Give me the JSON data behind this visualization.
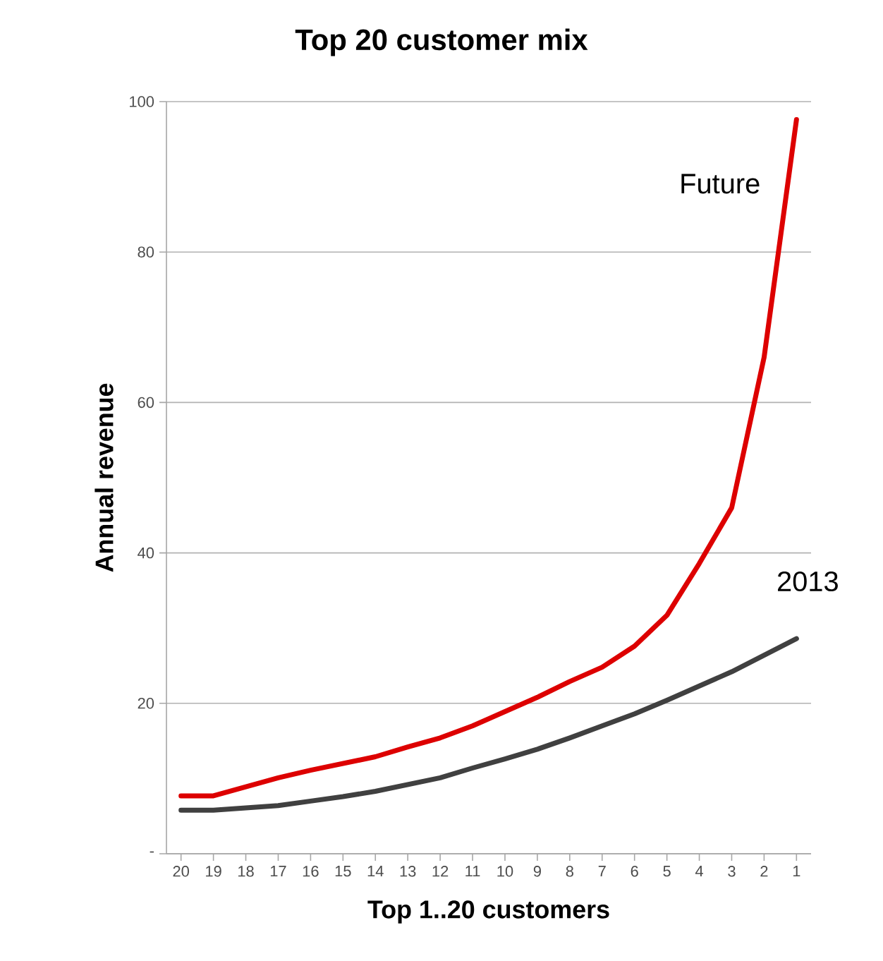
{
  "chart_data": {
    "type": "line",
    "title": "Top 20 customer mix",
    "xlabel": "Top 1..20 customers",
    "ylabel": "Annual revenue",
    "categories": [
      "20",
      "19",
      "18",
      "17",
      "16",
      "15",
      "14",
      "13",
      "12",
      "11",
      "10",
      "9",
      "8",
      "7",
      "6",
      "5",
      "4",
      "3",
      "2",
      "1"
    ],
    "series": [
      {
        "name": "Future",
        "color": "#dd0000",
        "values": [
          7.7,
          7.7,
          8.9,
          10.1,
          11.1,
          12,
          12.9,
          14.2,
          15.4,
          17,
          18.9,
          20.8,
          22.9,
          24.8,
          27.6,
          31.7,
          38.6,
          46,
          66,
          97.6
        ]
      },
      {
        "name": "2013",
        "color": "#404040",
        "values": [
          5.8,
          5.8,
          6.1,
          6.4,
          7,
          7.6,
          8.3,
          9.2,
          10.1,
          11.4,
          12.6,
          13.9,
          15.4,
          17,
          18.6,
          20.4,
          22.3,
          24.2,
          26.4,
          28.6
        ]
      }
    ],
    "ylim": [
      0,
      100
    ],
    "yticks": [
      {
        "value": 0,
        "label": "-"
      },
      20,
      40,
      60,
      80,
      100
    ],
    "grid": "y",
    "legend": false,
    "marker": "none",
    "line_style": "solid"
  }
}
